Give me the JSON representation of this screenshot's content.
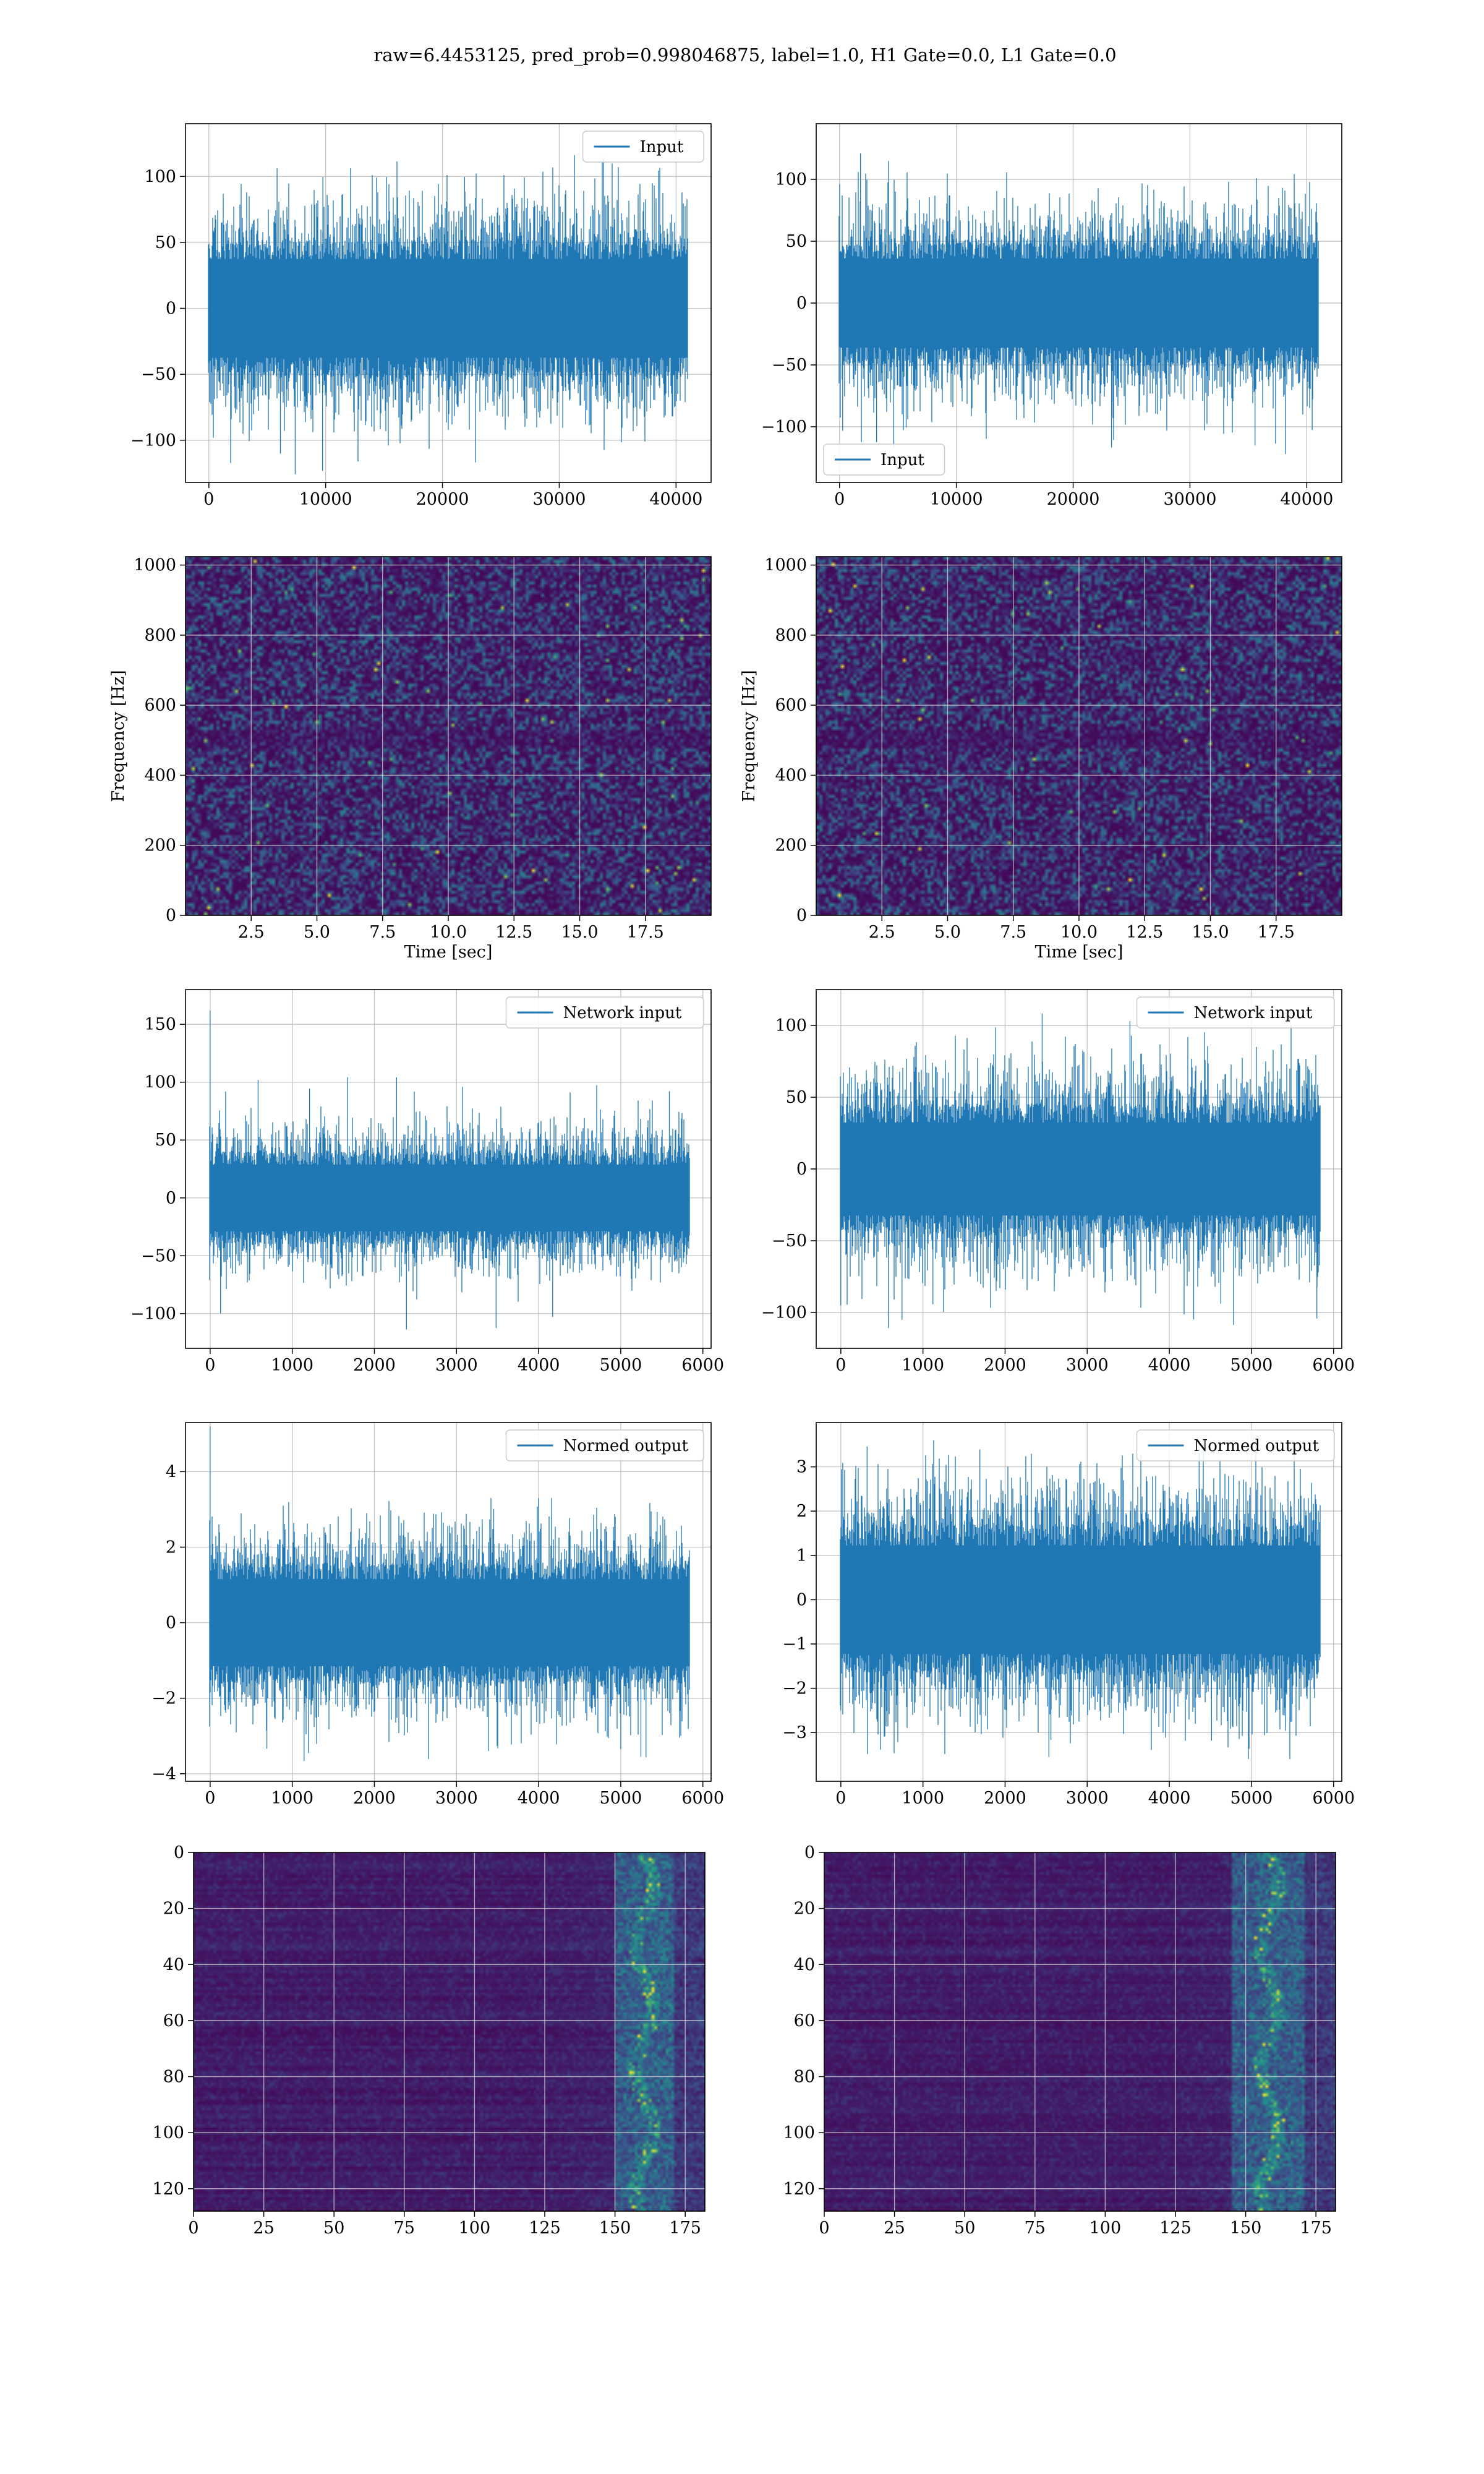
{
  "figure": {
    "suptitle": "raw=6.4453125, pred_prob=0.998046875, label=1.0, H1 Gate=0.0, L1 Gate=0.0"
  },
  "colors": {
    "line": "#1f77b4",
    "grid": "#b0b0b0",
    "viridis_dark": "#440154",
    "viridis_bright": "#fde725"
  },
  "chart_data": [
    {
      "id": "p00",
      "type": "line",
      "title": "",
      "legend": "Input",
      "legend_loc": "upper right",
      "xlabel": "",
      "ylabel": "",
      "xlim": [
        -2000,
        43000
      ],
      "ylim": [
        -132,
        140
      ],
      "xticks": [
        0,
        10000,
        20000,
        30000,
        40000
      ],
      "yticks": [
        -100,
        -50,
        0,
        50,
        100
      ],
      "n_samples": 40960,
      "x_range": [
        0,
        40960
      ],
      "core_amplitude": 52,
      "peak_range": [
        -128,
        118
      ],
      "first_sample": 0,
      "series": [
        {
          "name": "Input"
        }
      ]
    },
    {
      "id": "p01",
      "type": "line",
      "title": "",
      "legend": "Input",
      "legend_loc": "lower left",
      "xlabel": "",
      "ylabel": "",
      "xlim": [
        -2000,
        43000
      ],
      "ylim": [
        -145,
        145
      ],
      "xticks": [
        0,
        10000,
        20000,
        30000,
        40000
      ],
      "yticks": [
        -100,
        -50,
        0,
        50,
        100
      ],
      "n_samples": 40960,
      "x_range": [
        0,
        40960
      ],
      "core_amplitude": 50,
      "peak_range": [
        -122,
        132
      ],
      "first_sample": 0,
      "series": [
        {
          "name": "Input"
        }
      ]
    },
    {
      "id": "p10",
      "type": "heatmap",
      "title": "",
      "xlabel": "Time [sec]",
      "ylabel": "Frequency [Hz]",
      "xlim": [
        0,
        20
      ],
      "ylim": [
        0,
        1024
      ],
      "xticks": [
        2.5,
        5.0,
        7.5,
        10.0,
        12.5,
        15.0,
        17.5
      ],
      "yticks": [
        0,
        200,
        400,
        600,
        800,
        1000
      ],
      "xtick_labels": [
        "2.5",
        "5.0",
        "7.5",
        "10.0",
        "12.5",
        "15.0",
        "17.5"
      ],
      "colormap": "viridis",
      "grid": true,
      "pattern": "noise"
    },
    {
      "id": "p11",
      "type": "heatmap",
      "title": "",
      "xlabel": "Time [sec]",
      "ylabel": "Frequency [Hz]",
      "xlim": [
        0,
        20
      ],
      "ylim": [
        0,
        1024
      ],
      "xticks": [
        2.5,
        5.0,
        7.5,
        10.0,
        12.5,
        15.0,
        17.5
      ],
      "yticks": [
        0,
        200,
        400,
        600,
        800,
        1000
      ],
      "xtick_labels": [
        "2.5",
        "5.0",
        "7.5",
        "10.0",
        "12.5",
        "15.0",
        "17.5"
      ],
      "colormap": "viridis",
      "grid": true,
      "pattern": "noise"
    },
    {
      "id": "p20",
      "type": "line",
      "title": "",
      "legend": "Network input",
      "legend_loc": "upper right",
      "xlabel": "",
      "ylabel": "",
      "xlim": [
        -300,
        6100
      ],
      "ylim": [
        -130,
        180
      ],
      "xticks": [
        0,
        1000,
        2000,
        3000,
        4000,
        5000,
        6000
      ],
      "yticks": [
        -100,
        -50,
        0,
        50,
        100,
        150
      ],
      "n_samples": 5832,
      "x_range": [
        0,
        5832
      ],
      "core_amplitude": 40,
      "peak_range": [
        -115,
        105
      ],
      "first_sample": 162,
      "series": [
        {
          "name": "Network input"
        }
      ]
    },
    {
      "id": "p21",
      "type": "line",
      "title": "",
      "legend": "Network input",
      "legend_loc": "upper right",
      "xlabel": "",
      "ylabel": "",
      "xlim": [
        -300,
        6100
      ],
      "ylim": [
        -125,
        125
      ],
      "xticks": [
        0,
        1000,
        2000,
        3000,
        4000,
        5000,
        6000
      ],
      "yticks": [
        -100,
        -50,
        0,
        50,
        100
      ],
      "n_samples": 5832,
      "x_range": [
        0,
        5832
      ],
      "core_amplitude": 45,
      "peak_range": [
        -112,
        112
      ],
      "first_sample": -95,
      "series": [
        {
          "name": "Network input"
        }
      ]
    },
    {
      "id": "p30",
      "type": "line",
      "title": "",
      "legend": "Normed output",
      "legend_loc": "upper right",
      "xlabel": "",
      "ylabel": "",
      "xlim": [
        -300,
        6100
      ],
      "ylim": [
        -4.2,
        5.3
      ],
      "xticks": [
        0,
        1000,
        2000,
        3000,
        4000,
        5000,
        6000
      ],
      "yticks": [
        -4,
        -2,
        0,
        2,
        4
      ],
      "n_samples": 5832,
      "x_range": [
        0,
        5832
      ],
      "core_amplitude": 1.6,
      "peak_range": [
        -3.7,
        3.3
      ],
      "first_sample": 5.2,
      "series": [
        {
          "name": "Normed output"
        }
      ]
    },
    {
      "id": "p31",
      "type": "line",
      "title": "",
      "legend": "Normed output",
      "legend_loc": "upper right",
      "xlabel": "",
      "ylabel": "",
      "xlim": [
        -300,
        6100
      ],
      "ylim": [
        -4.1,
        4.0
      ],
      "xticks": [
        0,
        1000,
        2000,
        3000,
        4000,
        5000,
        6000
      ],
      "yticks": [
        -3,
        -2,
        -1,
        0,
        1,
        2,
        3
      ],
      "n_samples": 5832,
      "x_range": [
        0,
        5832
      ],
      "core_amplitude": 1.7,
      "peak_range": [
        -3.6,
        3.6
      ],
      "first_sample": -2.5,
      "series": [
        {
          "name": "Normed output"
        }
      ]
    },
    {
      "id": "p40",
      "type": "heatmap",
      "title": "",
      "xlabel": "",
      "ylabel": "",
      "xlim": [
        0,
        182
      ],
      "ylim": [
        128,
        0
      ],
      "xticks": [
        0,
        25,
        50,
        75,
        100,
        125,
        150,
        175
      ],
      "yticks": [
        0,
        20,
        40,
        60,
        80,
        100,
        120
      ],
      "xtick_labels": [
        "0",
        "25",
        "50",
        "75",
        "100",
        "125",
        "150",
        "175"
      ],
      "colormap": "viridis",
      "grid": true,
      "pattern": "activation",
      "n_rows": 128,
      "n_cols": 182,
      "hot_band_cols": [
        150,
        170
      ],
      "peak_col": 160
    },
    {
      "id": "p41",
      "type": "heatmap",
      "title": "",
      "xlabel": "",
      "ylabel": "",
      "xlim": [
        0,
        182
      ],
      "ylim": [
        128,
        0
      ],
      "xticks": [
        0,
        25,
        50,
        75,
        100,
        125,
        150,
        175
      ],
      "yticks": [
        0,
        20,
        40,
        60,
        80,
        100,
        120
      ],
      "xtick_labels": [
        "0",
        "25",
        "50",
        "75",
        "100",
        "125",
        "150",
        "175"
      ],
      "colormap": "viridis",
      "grid": true,
      "pattern": "activation",
      "n_rows": 128,
      "n_cols": 182,
      "hot_band_cols": [
        145,
        170
      ],
      "peak_col": 158
    }
  ]
}
